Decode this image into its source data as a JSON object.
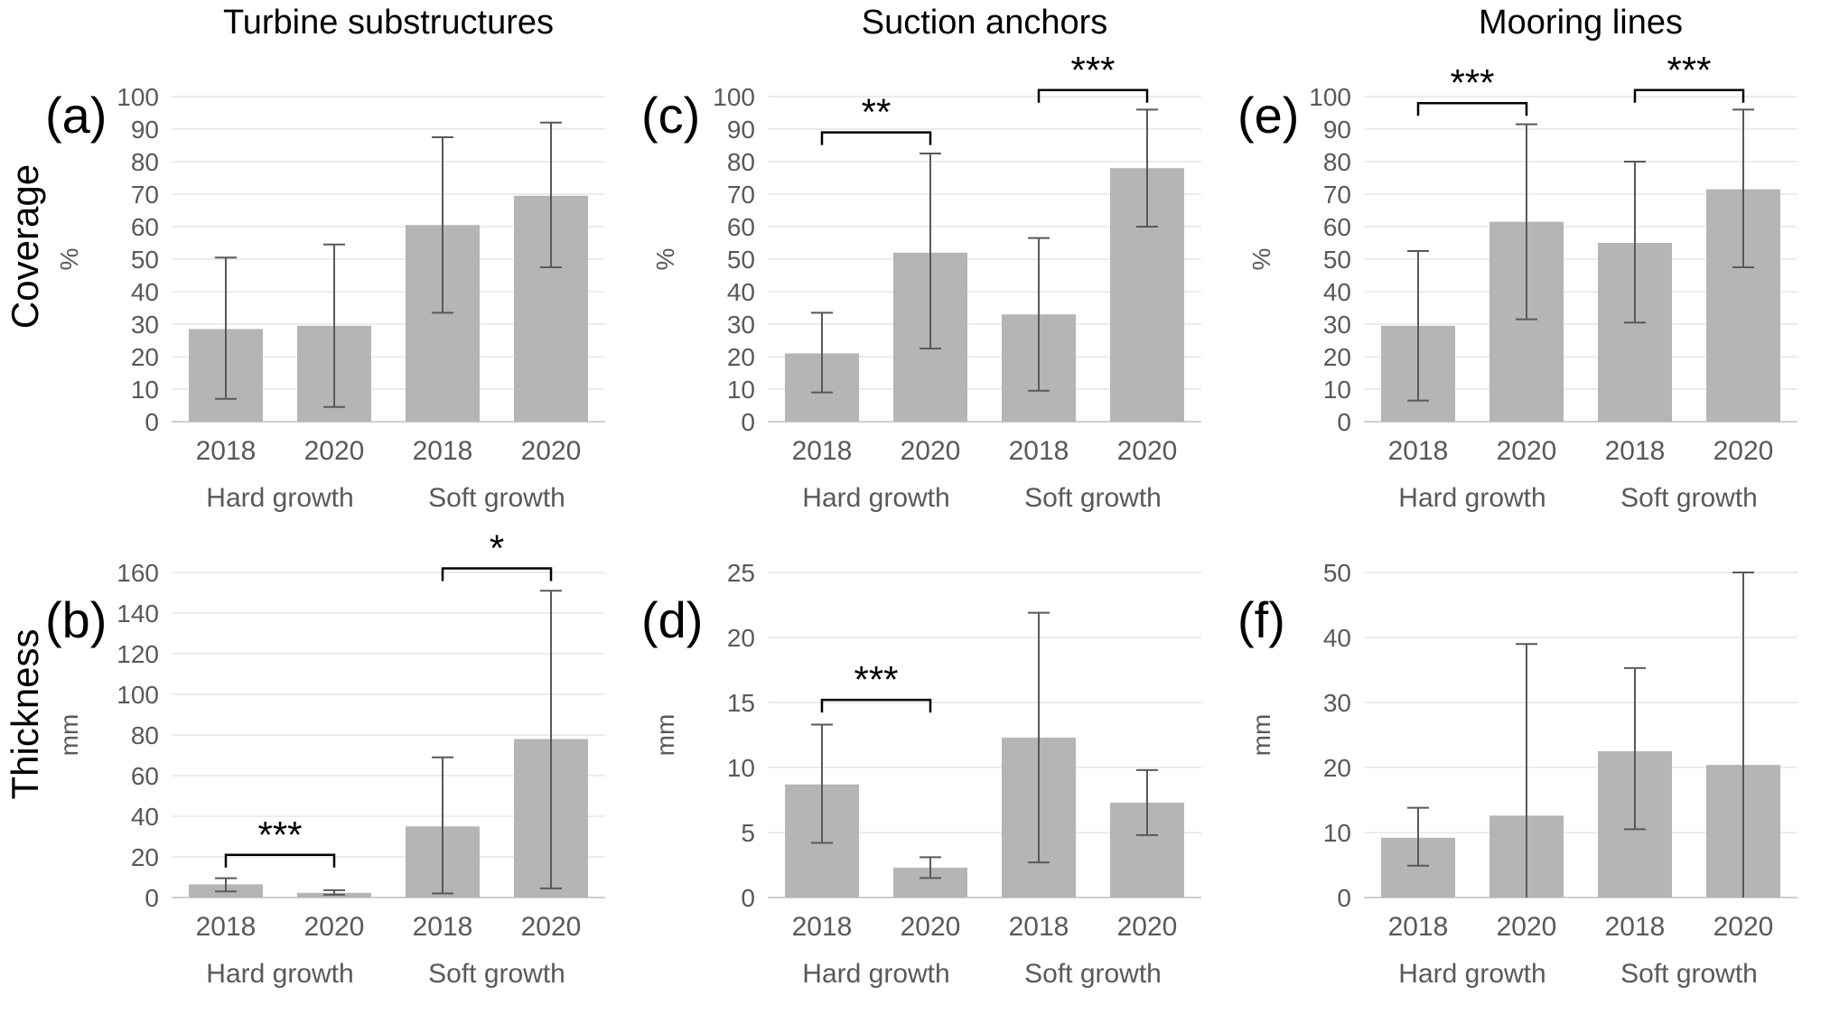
{
  "figure": {
    "columns": [
      "Turbine substructures",
      "Suction anchors",
      "Mooring lines"
    ],
    "rows": [
      "Coverage",
      "Thickness"
    ],
    "colors": {
      "bar": "#b5b5b5",
      "error_bar": "#595959",
      "gridline": "#d9d9d9",
      "axis_line": "#bfbfbf",
      "tick_text": "#595959",
      "annotation": "#000000"
    }
  },
  "chart_data": [
    {
      "panel": "(a)",
      "column": "Turbine substructures",
      "row": "Coverage",
      "type": "bar",
      "ylabel": "%",
      "ylim": [
        0,
        100
      ],
      "ytick_step": 10,
      "grid": true,
      "categories": [
        "2018",
        "2020",
        "2018",
        "2020"
      ],
      "groups": [
        "Hard growth",
        "Soft growth"
      ],
      "values": [
        28.5,
        29.5,
        60.5,
        69.5
      ],
      "error_low": [
        7,
        4.5,
        33.5,
        47.5
      ],
      "error_high": [
        50.5,
        54.5,
        87.5,
        92
      ],
      "significance": []
    },
    {
      "panel": "(b)",
      "column": "Turbine substructures",
      "row": "Thickness",
      "type": "bar",
      "ylabel": "mm",
      "ylim": [
        0,
        160
      ],
      "ytick_step": 20,
      "grid": true,
      "categories": [
        "2018",
        "2020",
        "2018",
        "2020"
      ],
      "groups": [
        "Hard growth",
        "Soft growth"
      ],
      "values": [
        6.5,
        2.3,
        35,
        78
      ],
      "error_low": [
        3,
        1.4,
        2,
        4.5
      ],
      "error_high": [
        9.5,
        3.6,
        69,
        151
      ],
      "significance": [
        {
          "pair": [
            0,
            1
          ],
          "y": 21,
          "label": "***"
        },
        {
          "pair": [
            2,
            3
          ],
          "y": 162,
          "label": "*"
        }
      ]
    },
    {
      "panel": "(c)",
      "column": "Suction anchors",
      "row": "Coverage",
      "type": "bar",
      "ylabel": "%",
      "ylim": [
        0,
        100
      ],
      "ytick_step": 10,
      "grid": true,
      "categories": [
        "2018",
        "2020",
        "2018",
        "2020"
      ],
      "groups": [
        "Hard growth",
        "Soft growth"
      ],
      "values": [
        21,
        52,
        33,
        78
      ],
      "error_low": [
        9,
        22.5,
        9.5,
        60
      ],
      "error_high": [
        33.5,
        82.5,
        56.5,
        96
      ],
      "significance": [
        {
          "pair": [
            0,
            1
          ],
          "y": 89,
          "label": "**"
        },
        {
          "pair": [
            2,
            3
          ],
          "y": 102,
          "label": "***"
        }
      ]
    },
    {
      "panel": "(d)",
      "column": "Suction anchors",
      "row": "Thickness",
      "type": "bar",
      "ylabel": "mm",
      "ylim": [
        0,
        25
      ],
      "ytick_step": 5,
      "grid": true,
      "categories": [
        "2018",
        "2020",
        "2018",
        "2020"
      ],
      "groups": [
        "Hard growth",
        "Soft growth"
      ],
      "values": [
        8.7,
        2.3,
        12.3,
        7.3
      ],
      "error_low": [
        4.2,
        1.5,
        2.7,
        4.8
      ],
      "error_high": [
        13.3,
        3.1,
        21.9,
        9.8
      ],
      "significance": [
        {
          "pair": [
            0,
            1
          ],
          "y": 15.2,
          "label": "***"
        }
      ]
    },
    {
      "panel": "(e)",
      "column": "Mooring lines",
      "row": "Coverage",
      "type": "bar",
      "ylabel": "%",
      "ylim": [
        0,
        100
      ],
      "ytick_step": 10,
      "grid": true,
      "categories": [
        "2018",
        "2020",
        "2018",
        "2020"
      ],
      "groups": [
        "Hard growth",
        "Soft growth"
      ],
      "values": [
        29.5,
        61.5,
        55,
        71.5
      ],
      "error_low": [
        6.5,
        31.5,
        30.5,
        47.5
      ],
      "error_high": [
        52.5,
        91.5,
        80,
        96
      ],
      "significance": [
        {
          "pair": [
            0,
            1
          ],
          "y": 98,
          "label": "***"
        },
        {
          "pair": [
            2,
            3
          ],
          "y": 102,
          "label": "***"
        }
      ]
    },
    {
      "panel": "(f)",
      "column": "Mooring lines",
      "row": "Thickness",
      "type": "bar",
      "ylabel": "mm",
      "ylim": [
        0,
        50
      ],
      "ytick_step": 10,
      "grid": true,
      "categories": [
        "2018",
        "2020",
        "2018",
        "2020"
      ],
      "groups": [
        "Hard growth",
        "Soft growth"
      ],
      "values": [
        9.2,
        12.6,
        22.5,
        20.4
      ],
      "error_low": [
        4.9,
        0,
        10.5,
        0
      ],
      "error_high": [
        13.8,
        39,
        35.3,
        50
      ],
      "significance": []
    }
  ]
}
